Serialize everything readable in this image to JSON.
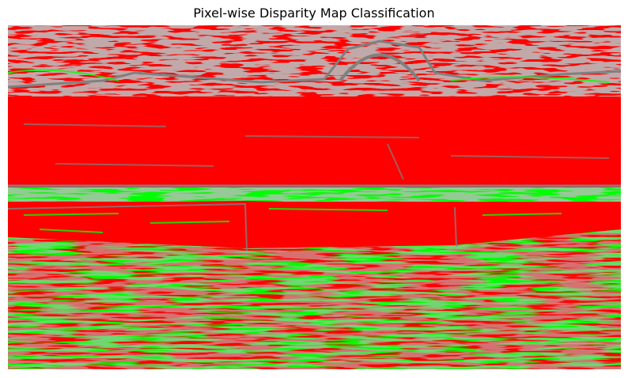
{
  "figure": {
    "title": "Pixel-wise Disparity Map Classification"
  },
  "colors": {
    "background": "#ffffff",
    "class_red": "#ff0000",
    "class_green": "#00ff00",
    "class_gray": "#808080"
  }
}
